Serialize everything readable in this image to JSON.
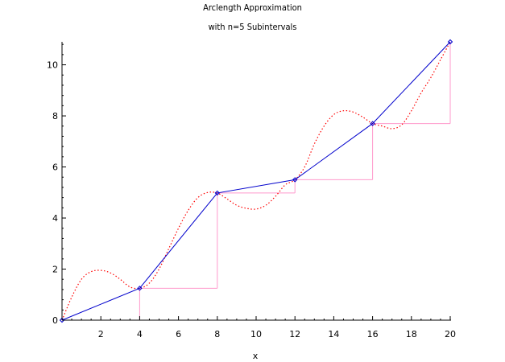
{
  "chart_data": {
    "type": "line",
    "title": "Arclength Approximation",
    "subtitle": "with n=5 Subintervals",
    "xlabel": "x",
    "ylabel": "",
    "xlim": [
      0,
      20
    ],
    "ylim": [
      0,
      10.9
    ],
    "x_ticks": [
      2,
      4,
      6,
      8,
      10,
      12,
      14,
      16,
      18,
      20
    ],
    "y_ticks": [
      0,
      2,
      4,
      6,
      8,
      10
    ],
    "grid": false,
    "legend": "none",
    "series": [
      {
        "style": "dotted",
        "color": "#ff0000",
        "x": [
          0,
          0.5,
          1,
          1.5,
          2,
          2.5,
          3,
          3.5,
          4,
          4.5,
          5,
          5.5,
          6,
          6.5,
          7,
          7.5,
          8,
          8.5,
          9,
          9.5,
          10,
          10.5,
          11,
          11.5,
          12,
          12.5,
          13,
          13.5,
          14,
          14.5,
          15,
          15.5,
          16,
          16.5,
          17,
          17.5,
          18,
          18.5,
          19,
          19.5,
          20
        ],
        "y": [
          0,
          0.9,
          1.6,
          1.9,
          1.95,
          1.85,
          1.6,
          1.3,
          1.25,
          1.45,
          2.0,
          2.8,
          3.6,
          4.3,
          4.8,
          5.0,
          4.98,
          4.75,
          4.5,
          4.38,
          4.35,
          4.5,
          4.85,
          5.3,
          5.5,
          6.0,
          6.9,
          7.6,
          8.05,
          8.2,
          8.15,
          7.95,
          7.7,
          7.6,
          7.5,
          7.65,
          8.2,
          8.9,
          9.5,
          10.2,
          10.9
        ]
      },
      {
        "style": "solid",
        "color": "#0000cc",
        "marker": "diamond",
        "x": [
          0,
          4,
          8,
          12,
          16,
          20
        ],
        "y": [
          0,
          1.25,
          4.98,
          5.5,
          7.7,
          10.9
        ]
      },
      {
        "style": "steps",
        "color": "#ff99cc",
        "x": [
          0,
          4,
          8,
          12,
          16,
          20
        ],
        "y": [
          0,
          1.25,
          4.98,
          5.5,
          7.7,
          10.9
        ]
      }
    ]
  }
}
